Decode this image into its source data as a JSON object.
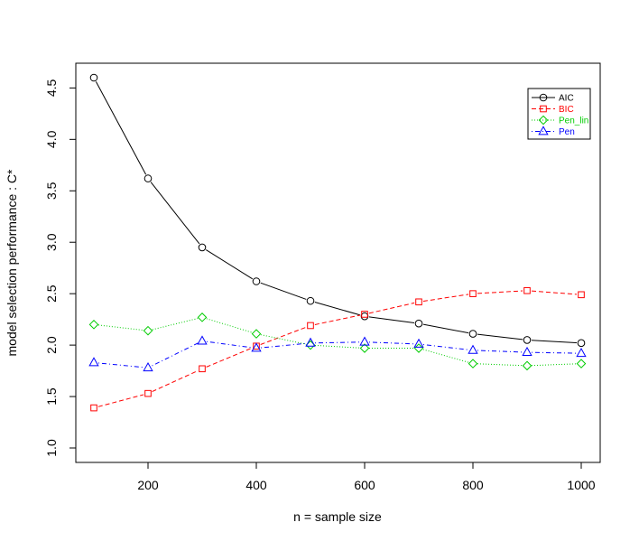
{
  "chart_data": {
    "type": "line",
    "xlabel": "n = sample size",
    "ylabel": "model selection performance : C*",
    "xlim": [
      100,
      1000
    ],
    "ylim": [
      1.0,
      4.6
    ],
    "x_ticks": [
      200,
      400,
      600,
      800,
      1000
    ],
    "y_ticks": [
      1.0,
      1.5,
      2.0,
      2.5,
      3.0,
      3.5,
      4.0,
      4.5
    ],
    "y_tick_labels": [
      "1.0",
      "1.5",
      "2.0",
      "2.5",
      "3.0",
      "3.5",
      "4.0",
      "4.5"
    ],
    "grid": false,
    "legend_position": "top-right",
    "x": [
      100,
      200,
      300,
      400,
      500,
      600,
      700,
      800,
      900,
      1000
    ],
    "series": [
      {
        "name": "AIC",
        "color": "#000000",
        "dash": "solid",
        "marker": "circle",
        "values": [
          4.6,
          3.62,
          2.95,
          2.62,
          2.43,
          2.28,
          2.21,
          2.11,
          2.05,
          2.02
        ]
      },
      {
        "name": "BIC",
        "color": "#ff0000",
        "dash": "dashed",
        "marker": "square",
        "values": [
          1.39,
          1.53,
          1.77,
          1.99,
          2.19,
          2.3,
          2.42,
          2.5,
          2.53,
          2.49
        ]
      },
      {
        "name": "Pen_lin",
        "color": "#00cc00",
        "dash": "dotted",
        "marker": "diamond",
        "values": [
          2.2,
          2.14,
          2.27,
          2.11,
          2.0,
          1.97,
          1.97,
          1.82,
          1.8,
          1.82
        ]
      },
      {
        "name": "Pen",
        "color": "#0000ff",
        "dash": "dotdash",
        "marker": "triangle",
        "values": [
          1.83,
          1.78,
          2.04,
          1.97,
          2.02,
          2.03,
          2.01,
          1.95,
          1.93,
          1.92
        ]
      }
    ]
  }
}
